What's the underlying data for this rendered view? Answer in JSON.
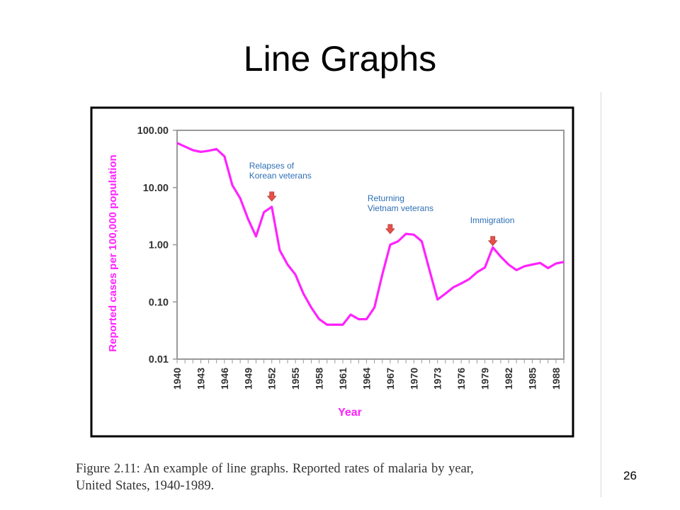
{
  "slide": {
    "title": "Line Graphs",
    "page_number": "26",
    "caption_line1": "Figure 2.11:  An example of line graphs.   Reported rates of malaria by year,",
    "caption_line2": "United States, 1940-1989."
  },
  "colors": {
    "line": "#ff22ff",
    "axis_title": "#ff22ff",
    "annotation_text": "#2e6fb5",
    "arrow": "#e8504a",
    "frame": "#000000"
  },
  "chart_data": {
    "type": "line",
    "xlabel": "Year",
    "ylabel": "Reported cases per 100,000 population",
    "yscale": "log",
    "ylim": [
      0.01,
      100
    ],
    "xlim": [
      1940,
      1989
    ],
    "yticks": [
      100,
      10,
      1,
      0.1,
      0.01
    ],
    "ytick_labels": [
      "100.00",
      "10.00",
      "1.00",
      "0.10",
      "0.01"
    ],
    "xticks": [
      1940,
      1943,
      1946,
      1949,
      1952,
      1955,
      1958,
      1961,
      1964,
      1967,
      1970,
      1973,
      1976,
      1979,
      1982,
      1985,
      1988
    ],
    "xtick_labels": [
      "1940",
      "1943",
      "1946",
      "1949",
      "1952",
      "1955",
      "1958",
      "1961",
      "1964",
      "1967",
      "1970",
      "1973",
      "1976",
      "1979",
      "1982",
      "1985",
      "1988"
    ],
    "grid": false,
    "series": [
      {
        "x": [
          1940,
          1941,
          1942,
          1943,
          1944,
          1945,
          1946,
          1947,
          1948,
          1949,
          1950,
          1951,
          1952,
          1953,
          1954,
          1955,
          1956,
          1957,
          1958,
          1959,
          1960,
          1961,
          1962,
          1963,
          1964,
          1965,
          1966,
          1967,
          1968,
          1969,
          1970,
          1971,
          1972,
          1973,
          1974,
          1975,
          1976,
          1977,
          1978,
          1979,
          1980,
          1981,
          1982,
          1983,
          1984,
          1985,
          1986,
          1987,
          1988,
          1989
        ],
        "values": [
          60,
          52,
          45,
          42,
          44,
          47,
          35,
          11,
          6.5,
          2.8,
          1.4,
          3.7,
          4.6,
          0.8,
          0.45,
          0.3,
          0.14,
          0.08,
          0.05,
          0.04,
          0.04,
          0.04,
          0.06,
          0.05,
          0.05,
          0.08,
          0.3,
          1.0,
          1.15,
          1.55,
          1.5,
          1.15,
          0.35,
          0.11,
          0.14,
          0.18,
          0.21,
          0.25,
          0.33,
          0.4,
          0.9,
          0.62,
          0.45,
          0.36,
          0.42,
          0.45,
          0.48,
          0.39,
          0.47,
          0.5
        ]
      }
    ],
    "annotations": [
      {
        "lines": [
          "Relapses of",
          "Korean veterans"
        ],
        "x": 1952,
        "arrow_y": 6.5
      },
      {
        "lines": [
          "Returning",
          "Vietnam veterans"
        ],
        "x": 1967,
        "arrow_y": 1.75
      },
      {
        "lines": [
          "Immigration"
        ],
        "x": 1980,
        "arrow_y": 1.08
      }
    ]
  }
}
